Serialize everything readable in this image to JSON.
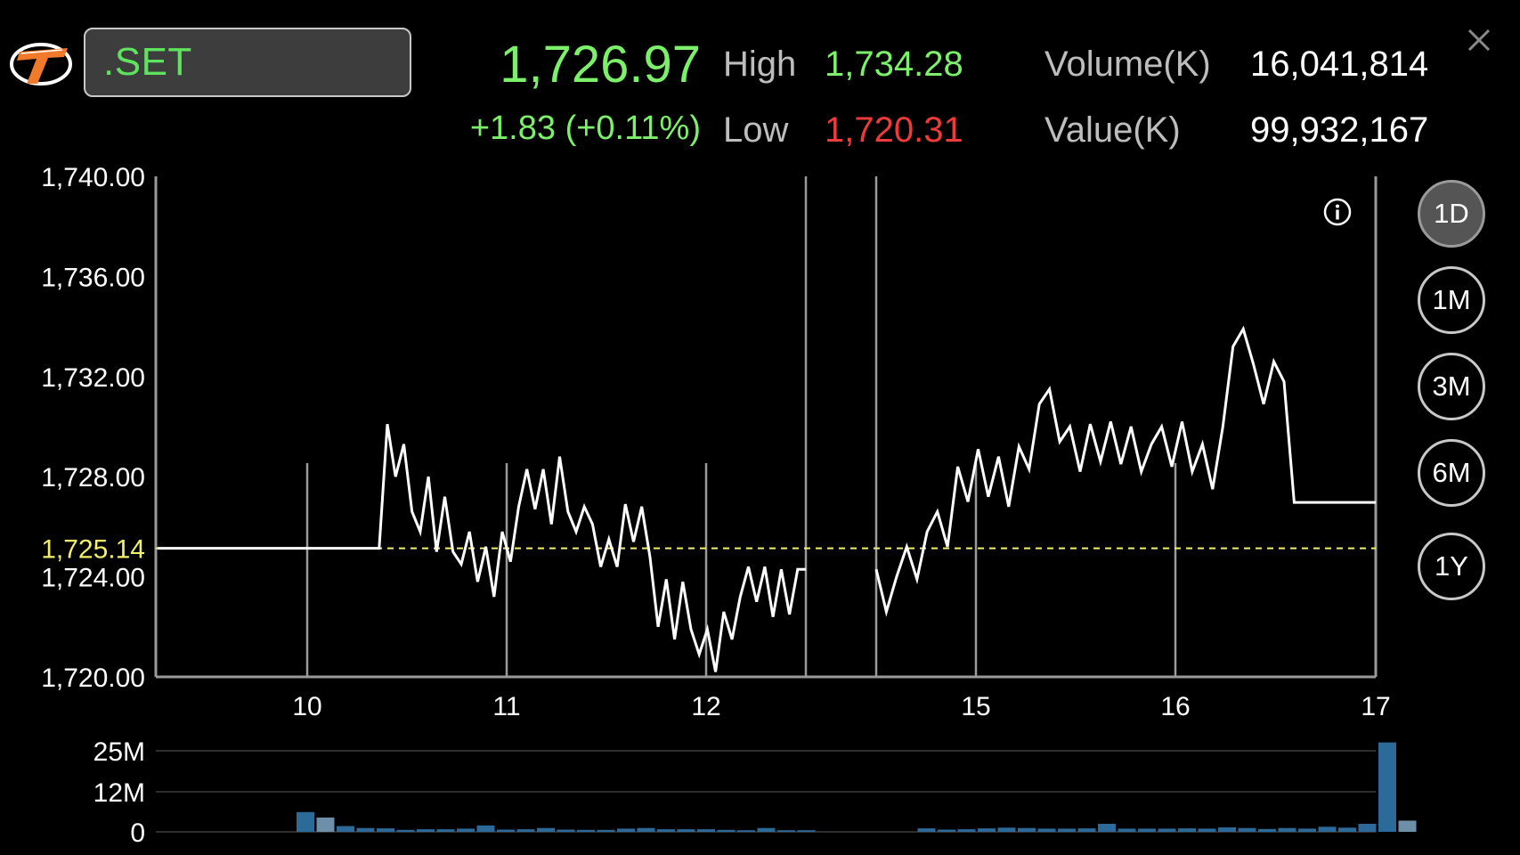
{
  "header": {
    "symbol": ".SET",
    "last_price": "1,726.97",
    "change": "+1.83 (+0.11%)",
    "high_label": "High",
    "high_value": "1,734.28",
    "low_label": "Low",
    "low_value": "1,720.31",
    "volume_label": "Volume(K)",
    "volume_value": "16,041,814",
    "value_label": "Value(K)",
    "value_value": "99,932,167",
    "logo_icon": "broker-logo-icon",
    "close_icon": "close-icon"
  },
  "period_buttons": [
    {
      "label": "1D",
      "active": true
    },
    {
      "label": "1M",
      "active": false
    },
    {
      "label": "3M",
      "active": false
    },
    {
      "label": "6M",
      "active": false
    },
    {
      "label": "1Y",
      "active": false
    }
  ],
  "info_icon": "info-icon",
  "colors": {
    "up": "#7cf06a",
    "down": "#ef3a3a",
    "reference": "#f2f06a",
    "volume_bar": "#2c6a9a",
    "volume_bar_light": "#6d8fa8"
  },
  "chart_data": [
    {
      "type": "line",
      "ylim": [
        1720,
        1740
      ],
      "y_ticks": [
        "1,740.00",
        "1,736.00",
        "1,732.00",
        "1,728.00",
        "1,724.00",
        "1,720.00"
      ],
      "y_tick_values": [
        1740,
        1736,
        1732,
        1728,
        1724,
        1720
      ],
      "reference_value": 1725.14,
      "reference_label": "1,725.14",
      "x_ticks": [
        "10",
        "11",
        "12",
        "15",
        "16",
        "17"
      ],
      "grid": false,
      "series": [
        {
          "segments": [
            [
              1725.14,
              1725.14,
              1725.14,
              1725.14,
              1725.14,
              1725.14,
              1725.14,
              1725.14,
              1725.14,
              1725.14,
              1725.14,
              1725.14,
              1725.14,
              1725.14,
              1725.14,
              1725.14,
              1725.14,
              1725.14,
              1725.14,
              1725.14,
              1725.14,
              1725.14,
              1725.14,
              1725.14,
              1725.14,
              1725.14,
              1725.14,
              1725.14,
              1730.1,
              1728.0,
              1729.3,
              1726.6,
              1725.8,
              1728.0,
              1725.0,
              1727.2,
              1725.0,
              1724.5,
              1725.8,
              1723.8,
              1725.2,
              1723.2,
              1725.8,
              1724.6,
              1726.8,
              1728.3,
              1726.7,
              1728.3,
              1726.1,
              1728.8,
              1726.6,
              1725.8,
              1726.8,
              1726.1,
              1724.4,
              1725.5,
              1724.4,
              1726.9,
              1725.4,
              1726.8,
              1724.8,
              1722.0,
              1723.9,
              1721.5,
              1723.8,
              1721.9,
              1720.9,
              1721.9,
              1720.2,
              1722.6,
              1721.5,
              1723.2,
              1724.4,
              1723.0,
              1724.4,
              1722.4,
              1724.3,
              1722.5,
              1724.3,
              1724.3
            ],
            [
              1724.3,
              1722.6,
              1724.0,
              1725.2,
              1723.9,
              1725.8,
              1726.6,
              1725.2,
              1728.4,
              1727.0,
              1729.1,
              1727.2,
              1728.8,
              1726.8,
              1729.2,
              1728.3,
              1730.9,
              1731.5,
              1729.4,
              1730.0,
              1728.2,
              1730.1,
              1728.6,
              1730.2,
              1728.5,
              1730.0,
              1728.2,
              1729.3,
              1730.0,
              1728.4,
              1730.2,
              1728.2,
              1729.3,
              1727.5,
              1730.0,
              1733.2,
              1733.9,
              1732.5,
              1730.9,
              1732.6,
              1731.8,
              1726.97,
              1726.97,
              1726.97,
              1726.97,
              1726.97,
              1726.97,
              1726.97,
              1726.97,
              1726.97
            ]
          ]
        }
      ]
    },
    {
      "type": "bar",
      "y_ticks": [
        "25M",
        "12M",
        "0"
      ],
      "y_tick_values": [
        25,
        12,
        0
      ],
      "ylim": [
        0,
        29
      ],
      "values": [
        0,
        0,
        0,
        0,
        0,
        0,
        0,
        6.2,
        4.5,
        1.8,
        1.2,
        1.1,
        0.6,
        0.8,
        0.8,
        1.0,
        2.0,
        0.7,
        0.8,
        1.2,
        0.7,
        0.6,
        0.6,
        1.0,
        1.2,
        0.8,
        0.8,
        0.8,
        0.6,
        0.5,
        1.2,
        0.5,
        0.5,
        0,
        0,
        0,
        0,
        0,
        1.1,
        0.7,
        0.8,
        1.1,
        1.3,
        1.2,
        1.0,
        1.0,
        1.1,
        2.5,
        1.0,
        1.0,
        1.0,
        1.1,
        1.0,
        1.4,
        1.2,
        0.9,
        1.2,
        1.0,
        1.6,
        1.3,
        2.5,
        28.0,
        3.5
      ],
      "light_indices": [
        8,
        62
      ]
    }
  ]
}
